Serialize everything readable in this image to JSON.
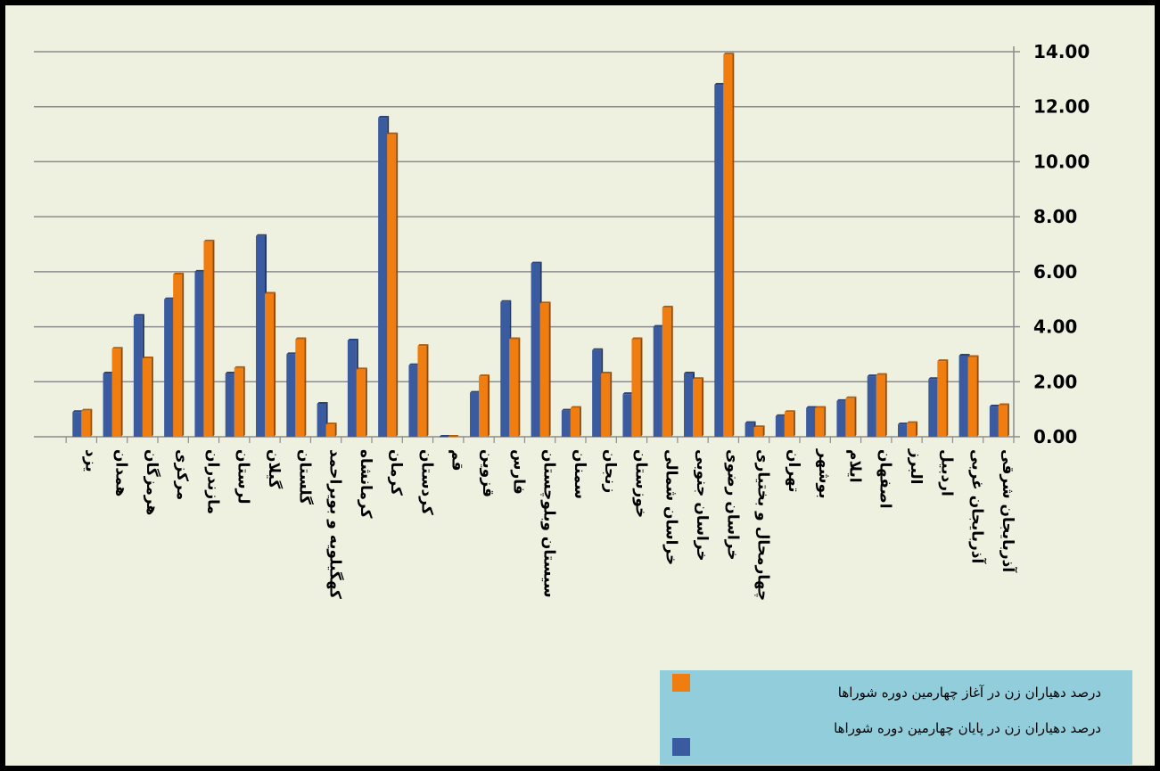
{
  "chart_data": {
    "type": "bar",
    "categories": [
      "یزد",
      "همدان",
      "هرمزگان",
      "مرکزی",
      "مازندران",
      "لرستان",
      "گیلان",
      "گلستان",
      "کهگیلویه و بویراحمد",
      "کرمانشاه",
      "کرمان",
      "کردستان",
      "قم",
      "قزوین",
      "فارس",
      "سیستان وبلوچستان",
      "سمنان",
      "زنجان",
      "خوزستان",
      "خراسان شمالی",
      "خراسان جنوبی",
      "خراسان رضوی",
      "چهارمحال و بختیاری",
      "تهران",
      "بوشهر",
      "ایلام",
      "اصفهان",
      "البرز",
      "اردبیل",
      "آذربایجان غربی",
      "آذربایجان شرقی"
    ],
    "series": [
      {
        "name": "درصد دهیاران زن در پایان چهارمین دوره شوراها",
        "color": "#3a5ba0",
        "values": [
          0.9,
          2.3,
          4.4,
          5.0,
          6.0,
          2.3,
          7.3,
          3.0,
          1.2,
          3.5,
          11.6,
          2.6,
          0.0,
          1.6,
          4.9,
          6.3,
          0.95,
          3.15,
          1.55,
          4.0,
          2.3,
          12.8,
          0.5,
          0.75,
          1.05,
          1.3,
          2.2,
          0.45,
          2.1,
          2.95,
          1.1
        ]
      },
      {
        "name": "درصد دهیاران زن در آغاز چهارمین دوره شوراها",
        "color": "#f07d10",
        "values": [
          0.95,
          3.2,
          2.85,
          5.9,
          7.1,
          2.5,
          5.2,
          3.55,
          0.45,
          2.45,
          11.0,
          3.3,
          0.0,
          2.2,
          3.55,
          4.85,
          1.05,
          2.3,
          3.55,
          4.7,
          2.1,
          13.9,
          0.35,
          0.9,
          1.05,
          1.4,
          2.25,
          0.5,
          2.75,
          2.9,
          1.15
        ]
      }
    ],
    "ylim": [
      0,
      14
    ],
    "yticks": [
      "0.00",
      "2.00",
      "4.00",
      "6.00",
      "8.00",
      "10.00",
      "12.00",
      "14.00"
    ],
    "grid": true,
    "legend_position": "bottom-right"
  }
}
